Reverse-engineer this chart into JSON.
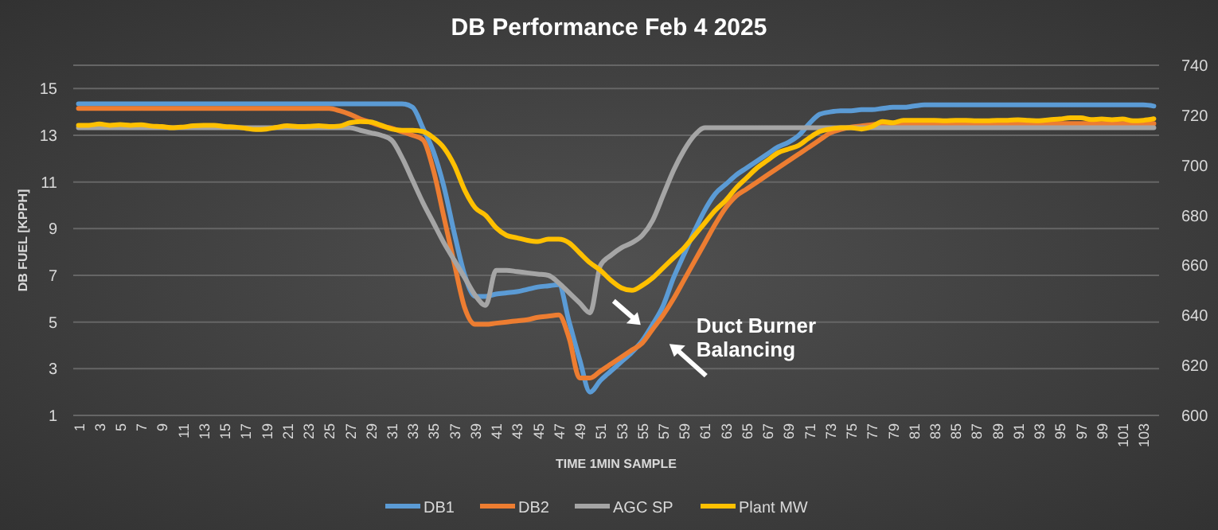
{
  "chart_data": {
    "type": "line",
    "title": "DB Performance Feb 4 2025",
    "xlabel": "TIME 1MIN SAMPLE",
    "ylabel": "DB FUEL [KPPH]",
    "categories": [
      "1",
      null,
      "3",
      null,
      "5",
      null,
      "7",
      null,
      "9",
      null,
      "11",
      null,
      "13",
      null,
      "15",
      null,
      "17",
      null,
      "19",
      null,
      "21",
      null,
      "23",
      null,
      "25",
      null,
      "27",
      null,
      "29",
      null,
      "31",
      null,
      "33",
      null,
      "35",
      null,
      "37",
      null,
      "39",
      null,
      "41",
      null,
      "43",
      null,
      "45",
      null,
      "47",
      null,
      "49",
      null,
      "51",
      null,
      "53",
      null,
      "55",
      null,
      "57",
      null,
      "59",
      null,
      "61",
      null,
      "63",
      null,
      "65",
      null,
      "67",
      null,
      "69",
      null,
      "71",
      null,
      "73",
      null,
      "75",
      null,
      "77",
      null,
      "79",
      null,
      "81",
      null,
      "83",
      null,
      "85",
      null,
      "87",
      null,
      "89",
      null,
      "91",
      null,
      "93",
      null,
      "95",
      null,
      "97",
      null,
      "99",
      null,
      "101",
      null,
      "103",
      null
    ],
    "series": [
      {
        "name": "DB1",
        "color": "#5b9bd5",
        "values": [
          14.35,
          14.35,
          14.35,
          14.35,
          14.35,
          14.35,
          14.35,
          14.35,
          14.35,
          14.35,
          14.35,
          14.35,
          14.35,
          14.35,
          14.35,
          14.35,
          14.35,
          14.35,
          14.35,
          14.35,
          14.35,
          14.35,
          14.35,
          14.35,
          14.35,
          14.35,
          14.35,
          14.35,
          14.35,
          14.35,
          14.35,
          14.35,
          14.2,
          13.3,
          12.3,
          10.8,
          8.8,
          7.0,
          6.1,
          6.1,
          6.2,
          6.25,
          6.3,
          6.4,
          6.5,
          6.55,
          6.6,
          5.0,
          3.4,
          2.0,
          2.5,
          2.9,
          3.3,
          3.7,
          4.2,
          4.9,
          5.7,
          6.9,
          7.9,
          8.9,
          9.8,
          10.5,
          10.9,
          11.3,
          11.6,
          11.9,
          12.2,
          12.5,
          12.7,
          13.0,
          13.5,
          13.9,
          14.0,
          14.05,
          14.05,
          14.1,
          14.1,
          14.15,
          14.2,
          14.2,
          14.25,
          14.3,
          14.3,
          14.3,
          14.3,
          14.3,
          14.3,
          14.3,
          14.3,
          14.3,
          14.3,
          14.3,
          14.3,
          14.3,
          14.3,
          14.3,
          14.3,
          14.3,
          14.3,
          14.3,
          14.3,
          14.3,
          14.3,
          14.25
        ]
      },
      {
        "name": "DB2",
        "color": "#ed7d31",
        "values": [
          14.15,
          14.15,
          14.15,
          14.15,
          14.15,
          14.15,
          14.15,
          14.15,
          14.15,
          14.15,
          14.15,
          14.15,
          14.15,
          14.15,
          14.15,
          14.15,
          14.15,
          14.15,
          14.15,
          14.15,
          14.15,
          14.15,
          14.15,
          14.15,
          14.15,
          14.05,
          13.9,
          13.7,
          13.55,
          13.4,
          13.3,
          13.15,
          13.0,
          12.8,
          11.5,
          9.5,
          7.5,
          5.6,
          4.9,
          4.9,
          4.95,
          5.0,
          5.05,
          5.1,
          5.2,
          5.25,
          5.3,
          4.3,
          2.6,
          2.6,
          2.9,
          3.2,
          3.5,
          3.8,
          4.1,
          4.7,
          5.3,
          6.0,
          6.8,
          7.6,
          8.4,
          9.2,
          9.9,
          10.4,
          10.7,
          11.0,
          11.3,
          11.6,
          11.9,
          12.2,
          12.5,
          12.8,
          13.1,
          13.25,
          13.35,
          13.4,
          13.45,
          13.5,
          13.5,
          13.5,
          13.5,
          13.5,
          13.5,
          13.5,
          13.5,
          13.5,
          13.5,
          13.5,
          13.5,
          13.5,
          13.5,
          13.5,
          13.5,
          13.5,
          13.5,
          13.5,
          13.5,
          13.5,
          13.5,
          13.5,
          13.5,
          13.5,
          13.5,
          13.5
        ]
      },
      {
        "name": "AGC SP",
        "color": "#a5a5a5",
        "axis": "y2",
        "values": [
          715,
          715,
          715,
          715,
          715,
          715,
          715,
          715,
          715,
          715,
          715,
          715,
          715,
          715,
          715,
          715,
          715,
          715,
          715,
          715,
          715,
          715,
          715,
          715,
          715,
          715,
          715,
          714,
          713,
          712,
          710,
          703,
          694,
          685,
          677,
          669,
          662,
          655,
          648,
          644,
          658,
          658,
          657.5,
          657,
          656.5,
          656,
          653,
          649,
          645,
          641,
          660,
          664,
          667,
          669,
          672,
          678,
          688,
          698,
          706,
          712,
          715,
          715,
          715,
          715,
          715,
          715,
          715,
          715,
          715,
          715,
          715,
          715,
          715,
          715,
          715,
          715,
          715,
          715,
          715,
          715,
          715,
          715,
          715,
          715,
          715,
          715,
          715,
          715,
          715,
          715,
          715,
          715,
          715,
          715,
          715,
          715,
          715,
          715,
          715,
          715,
          715,
          715,
          715,
          715
        ]
      },
      {
        "name": "Plant MW",
        "color": "#ffc000",
        "axis": "y2",
        "values": [
          716,
          716,
          716.5,
          716,
          716.3,
          716,
          716.2,
          715.7,
          715.5,
          715,
          715.3,
          715.8,
          716,
          716,
          715.5,
          715.3,
          714.8,
          714.3,
          714.5,
          715.2,
          715.8,
          715.5,
          715.6,
          715.8,
          715.5,
          715.7,
          717,
          717.5,
          717.3,
          716,
          714.5,
          714,
          714,
          713.5,
          711,
          707,
          700,
          690,
          683,
          680,
          675,
          672,
          671,
          670,
          669.5,
          670.5,
          670.5,
          669,
          665,
          661,
          658,
          654,
          651,
          650,
          652,
          655,
          659,
          663,
          667,
          672,
          677,
          682,
          686,
          691,
          695,
          699,
          702,
          705,
          706.5,
          708,
          711,
          713.5,
          714.5,
          715,
          715,
          714.5,
          715.5,
          717.5,
          717,
          718,
          718,
          718,
          718,
          717.8,
          718,
          718,
          717.8,
          717.8,
          718,
          718,
          718.2,
          718,
          717.8,
          718.2,
          718.5,
          719,
          719,
          718.3,
          718.5,
          718.2,
          718.5,
          717.8,
          718,
          718.6
        ]
      }
    ],
    "ylim": [
      1,
      16
    ],
    "yticks": [
      1,
      3,
      5,
      7,
      9,
      11,
      13,
      15
    ],
    "y2lim": [
      600,
      740
    ],
    "y2ticks": [
      600,
      620,
      640,
      660,
      680,
      700,
      720,
      740
    ],
    "grid": "y",
    "legend": "bottom",
    "line_style": "solid",
    "marker": "none",
    "annotations": [
      {
        "text": "Duct Burner Balancing",
        "x": "55",
        "y": 4.2
      }
    ]
  }
}
